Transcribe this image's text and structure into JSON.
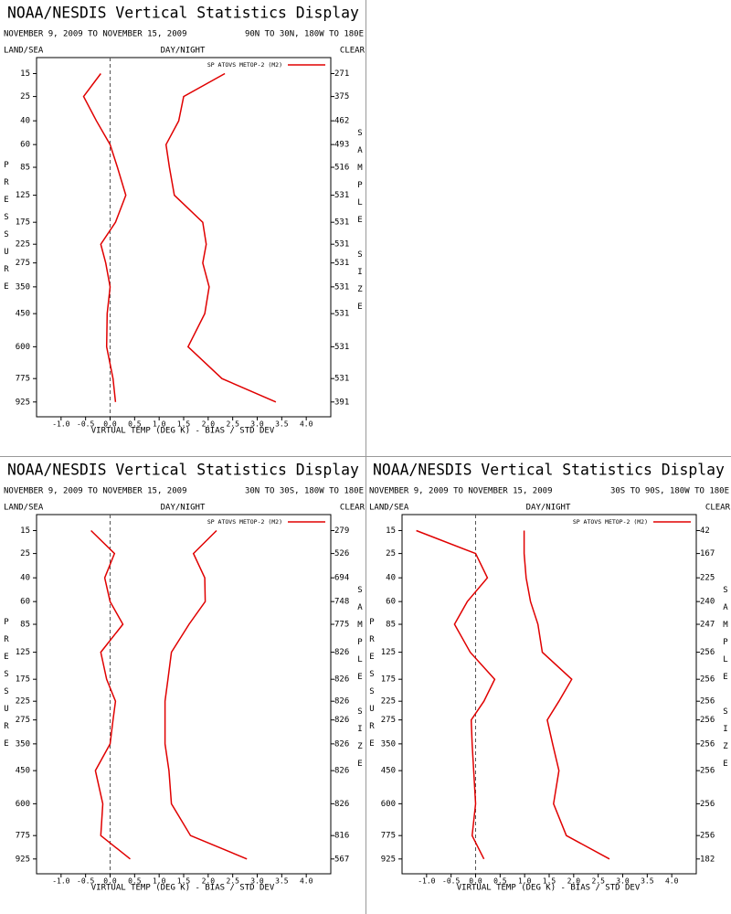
{
  "chart_data": [
    {
      "type": "line",
      "title": "NOAA/NESDIS Vertical Statistics Display",
      "subtitle_left": "NOVEMBER 9, 2009 TO NOVEMBER 15, 2009",
      "subtitle_right": "90N TO 30N, 180W TO 180E",
      "header_left": "LAND/SEA",
      "header_center": "DAY/NIGHT",
      "header_right": "CLEAR",
      "xlabel": "VIRTUAL TEMP (DEG K) - BIAS / STD DEV",
      "ylabel": "PRESSURE",
      "y2label": "SAMPLE SIZE",
      "xlim": [
        -1.5,
        4.5
      ],
      "xticks": [
        {
          "value": -1,
          "label": "-1.0"
        },
        -0.5,
        {
          "value": 0,
          "label": "0.0"
        },
        0.5,
        {
          "value": 1,
          "label": "1.0"
        },
        1.5,
        {
          "value": 2,
          "label": "2.0"
        },
        2.5,
        {
          "value": 3,
          "label": "3.0"
        },
        3.5,
        {
          "value": 4,
          "label": "4.0"
        }
      ],
      "ylim": [
        1030,
        10
      ],
      "yscale": "power",
      "yexponent": 0.286,
      "y": [
        15,
        25,
        40,
        60,
        85,
        125,
        175,
        225,
        275,
        350,
        450,
        600,
        775,
        925
      ],
      "yticks": [
        15,
        25,
        40,
        60,
        85,
        125,
        175,
        225,
        275,
        350,
        450,
        600,
        775,
        925
      ],
      "sample_size": [
        271,
        375,
        462,
        493,
        516,
        531,
        531,
        531,
        531,
        531,
        531,
        531,
        531,
        391
      ],
      "legend": "upper right",
      "grid": false,
      "series": [
        {
          "name": "SP ATOVS METOP-2 (M2)",
          "color": "#e00000",
          "values": [
            -0.19,
            -0.54,
            -0.28,
            0.0,
            0.15,
            0.32,
            0.11,
            -0.19,
            -0.09,
            0.0,
            -0.06,
            -0.07,
            0.06,
            0.11
          ]
        },
        {
          "color": "#e00000",
          "values": [
            2.34,
            1.5,
            1.4,
            1.14,
            1.21,
            1.31,
            1.89,
            1.96,
            1.89,
            2.02,
            1.93,
            1.59,
            2.28,
            3.38
          ]
        }
      ]
    },
    {
      "type": "line",
      "title": "NOAA/NESDIS Vertical Statistics Display",
      "subtitle_left": "NOVEMBER 9, 2009 TO NOVEMBER 15, 2009",
      "subtitle_right": "30N TO 30S, 180W TO 180E",
      "header_left": "LAND/SEA",
      "header_center": "DAY/NIGHT",
      "header_right": "CLEAR",
      "xlabel": "VIRTUAL TEMP (DEG K) - BIAS / STD DEV",
      "ylabel": "PRESSURE",
      "y2label": "SAMPLE SIZE",
      "xlim": [
        -1.5,
        4.5
      ],
      "xticks": [
        {
          "value": -1,
          "label": "-1.0"
        },
        -0.5,
        {
          "value": 0,
          "label": "0.0"
        },
        0.5,
        {
          "value": 1,
          "label": "1.0"
        },
        1.5,
        {
          "value": 2,
          "label": "2.0"
        },
        2.5,
        {
          "value": 3,
          "label": "3.0"
        },
        3.5,
        {
          "value": 4,
          "label": "4.0"
        }
      ],
      "ylim": [
        1030,
        10
      ],
      "yscale": "power",
      "yexponent": 0.286,
      "y": [
        15,
        25,
        40,
        60,
        85,
        125,
        175,
        225,
        275,
        350,
        450,
        600,
        775,
        925
      ],
      "yticks": [
        15,
        25,
        40,
        60,
        85,
        125,
        175,
        225,
        275,
        350,
        450,
        600,
        775,
        925
      ],
      "sample_size": [
        279,
        526,
        694,
        748,
        775,
        826,
        826,
        826,
        826,
        826,
        826,
        826,
        816,
        567
      ],
      "legend": "upper right",
      "grid": false,
      "series": [
        {
          "name": "SP ATOVS METOP-2 (M2)",
          "color": "#e00000",
          "values": [
            -0.39,
            0.09,
            -0.11,
            0.0,
            0.26,
            -0.19,
            -0.07,
            0.11,
            0.06,
            0.0,
            -0.3,
            -0.15,
            -0.19,
            0.41
          ]
        },
        {
          "color": "#e00000",
          "values": [
            2.17,
            1.7,
            1.93,
            1.94,
            1.61,
            1.25,
            1.18,
            1.12,
            1.12,
            1.12,
            1.2,
            1.25,
            1.64,
            2.79
          ]
        }
      ]
    },
    {
      "type": "line",
      "title": "NOAA/NESDIS Vertical Statistics Display",
      "subtitle_left": "NOVEMBER 9, 2009 TO NOVEMBER 15, 2009",
      "subtitle_right": "30S TO 90S, 180W TO 180E",
      "header_left": "LAND/SEA",
      "header_center": "DAY/NIGHT",
      "header_right": "CLEAR",
      "xlabel": "VIRTUAL TEMP (DEG K) - BIAS / STD DEV",
      "ylabel": "PRESSURE",
      "y2label": "SAMPLE SIZE",
      "xlim": [
        -1.5,
        4.5
      ],
      "xticks": [
        {
          "value": -1,
          "label": "-1.0"
        },
        -0.5,
        {
          "value": 0,
          "label": "0.0"
        },
        0.5,
        {
          "value": 1,
          "label": "1.0"
        },
        1.5,
        {
          "value": 2,
          "label": "2.0"
        },
        2.5,
        {
          "value": 3,
          "label": "3.0"
        },
        3.5,
        {
          "value": 4,
          "label": "4.0"
        }
      ],
      "ylim": [
        1030,
        10
      ],
      "yscale": "power",
      "yexponent": 0.286,
      "y": [
        15,
        25,
        40,
        60,
        85,
        125,
        175,
        225,
        275,
        350,
        450,
        600,
        775,
        925
      ],
      "yticks": [
        15,
        25,
        40,
        60,
        85,
        125,
        175,
        225,
        275,
        350,
        450,
        600,
        775,
        925
      ],
      "sample_size": [
        42,
        167,
        225,
        240,
        247,
        256,
        256,
        256,
        256,
        256,
        256,
        256,
        256,
        182
      ],
      "legend": "upper right",
      "grid": false,
      "series": [
        {
          "name": "SP ATOVS METOP-2 (M2)",
          "color": "#e00000",
          "values": [
            -1.21,
            0.0,
            0.24,
            -0.17,
            -0.43,
            -0.11,
            0.39,
            0.17,
            -0.09,
            -0.07,
            -0.04,
            0.0,
            -0.07,
            0.17
          ]
        },
        {
          "color": "#e00000",
          "values": [
            0.99,
            0.99,
            1.03,
            1.12,
            1.27,
            1.36,
            1.96,
            1.7,
            1.46,
            1.57,
            1.7,
            1.59,
            1.85,
            2.73
          ]
        }
      ]
    }
  ]
}
